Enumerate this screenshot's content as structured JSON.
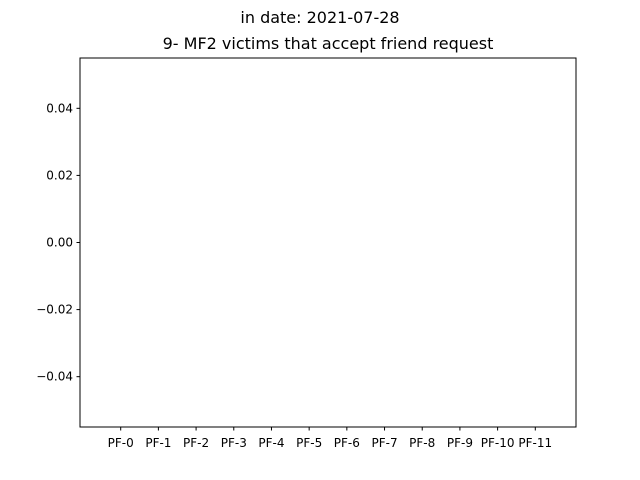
{
  "chart_data": {
    "type": "bar",
    "suptitle": "in date: 2021-07-28",
    "title": "9- MF2 victims that accept friend request",
    "xlabel": "",
    "ylabel": "",
    "categories": [
      "PF-0",
      "PF-1",
      "PF-2",
      "PF-3",
      "PF-4",
      "PF-5",
      "PF-6",
      "PF-7",
      "PF-8",
      "PF-9",
      "PF-10",
      "PF-11"
    ],
    "values": [
      0,
      0,
      0,
      0,
      0,
      0,
      0,
      0,
      0,
      0,
      0,
      0
    ],
    "ylim": [
      -0.055,
      0.055
    ],
    "yticks": [
      0.04,
      0.02,
      0.0,
      -0.02,
      -0.04
    ],
    "ytick_labels": [
      "0.04",
      "0.02",
      "0.00",
      "−0.02",
      "−0.04"
    ],
    "grid": false,
    "colors": {
      "axes": "#000000",
      "background": "#ffffff",
      "bar": "#1f77b4"
    }
  }
}
